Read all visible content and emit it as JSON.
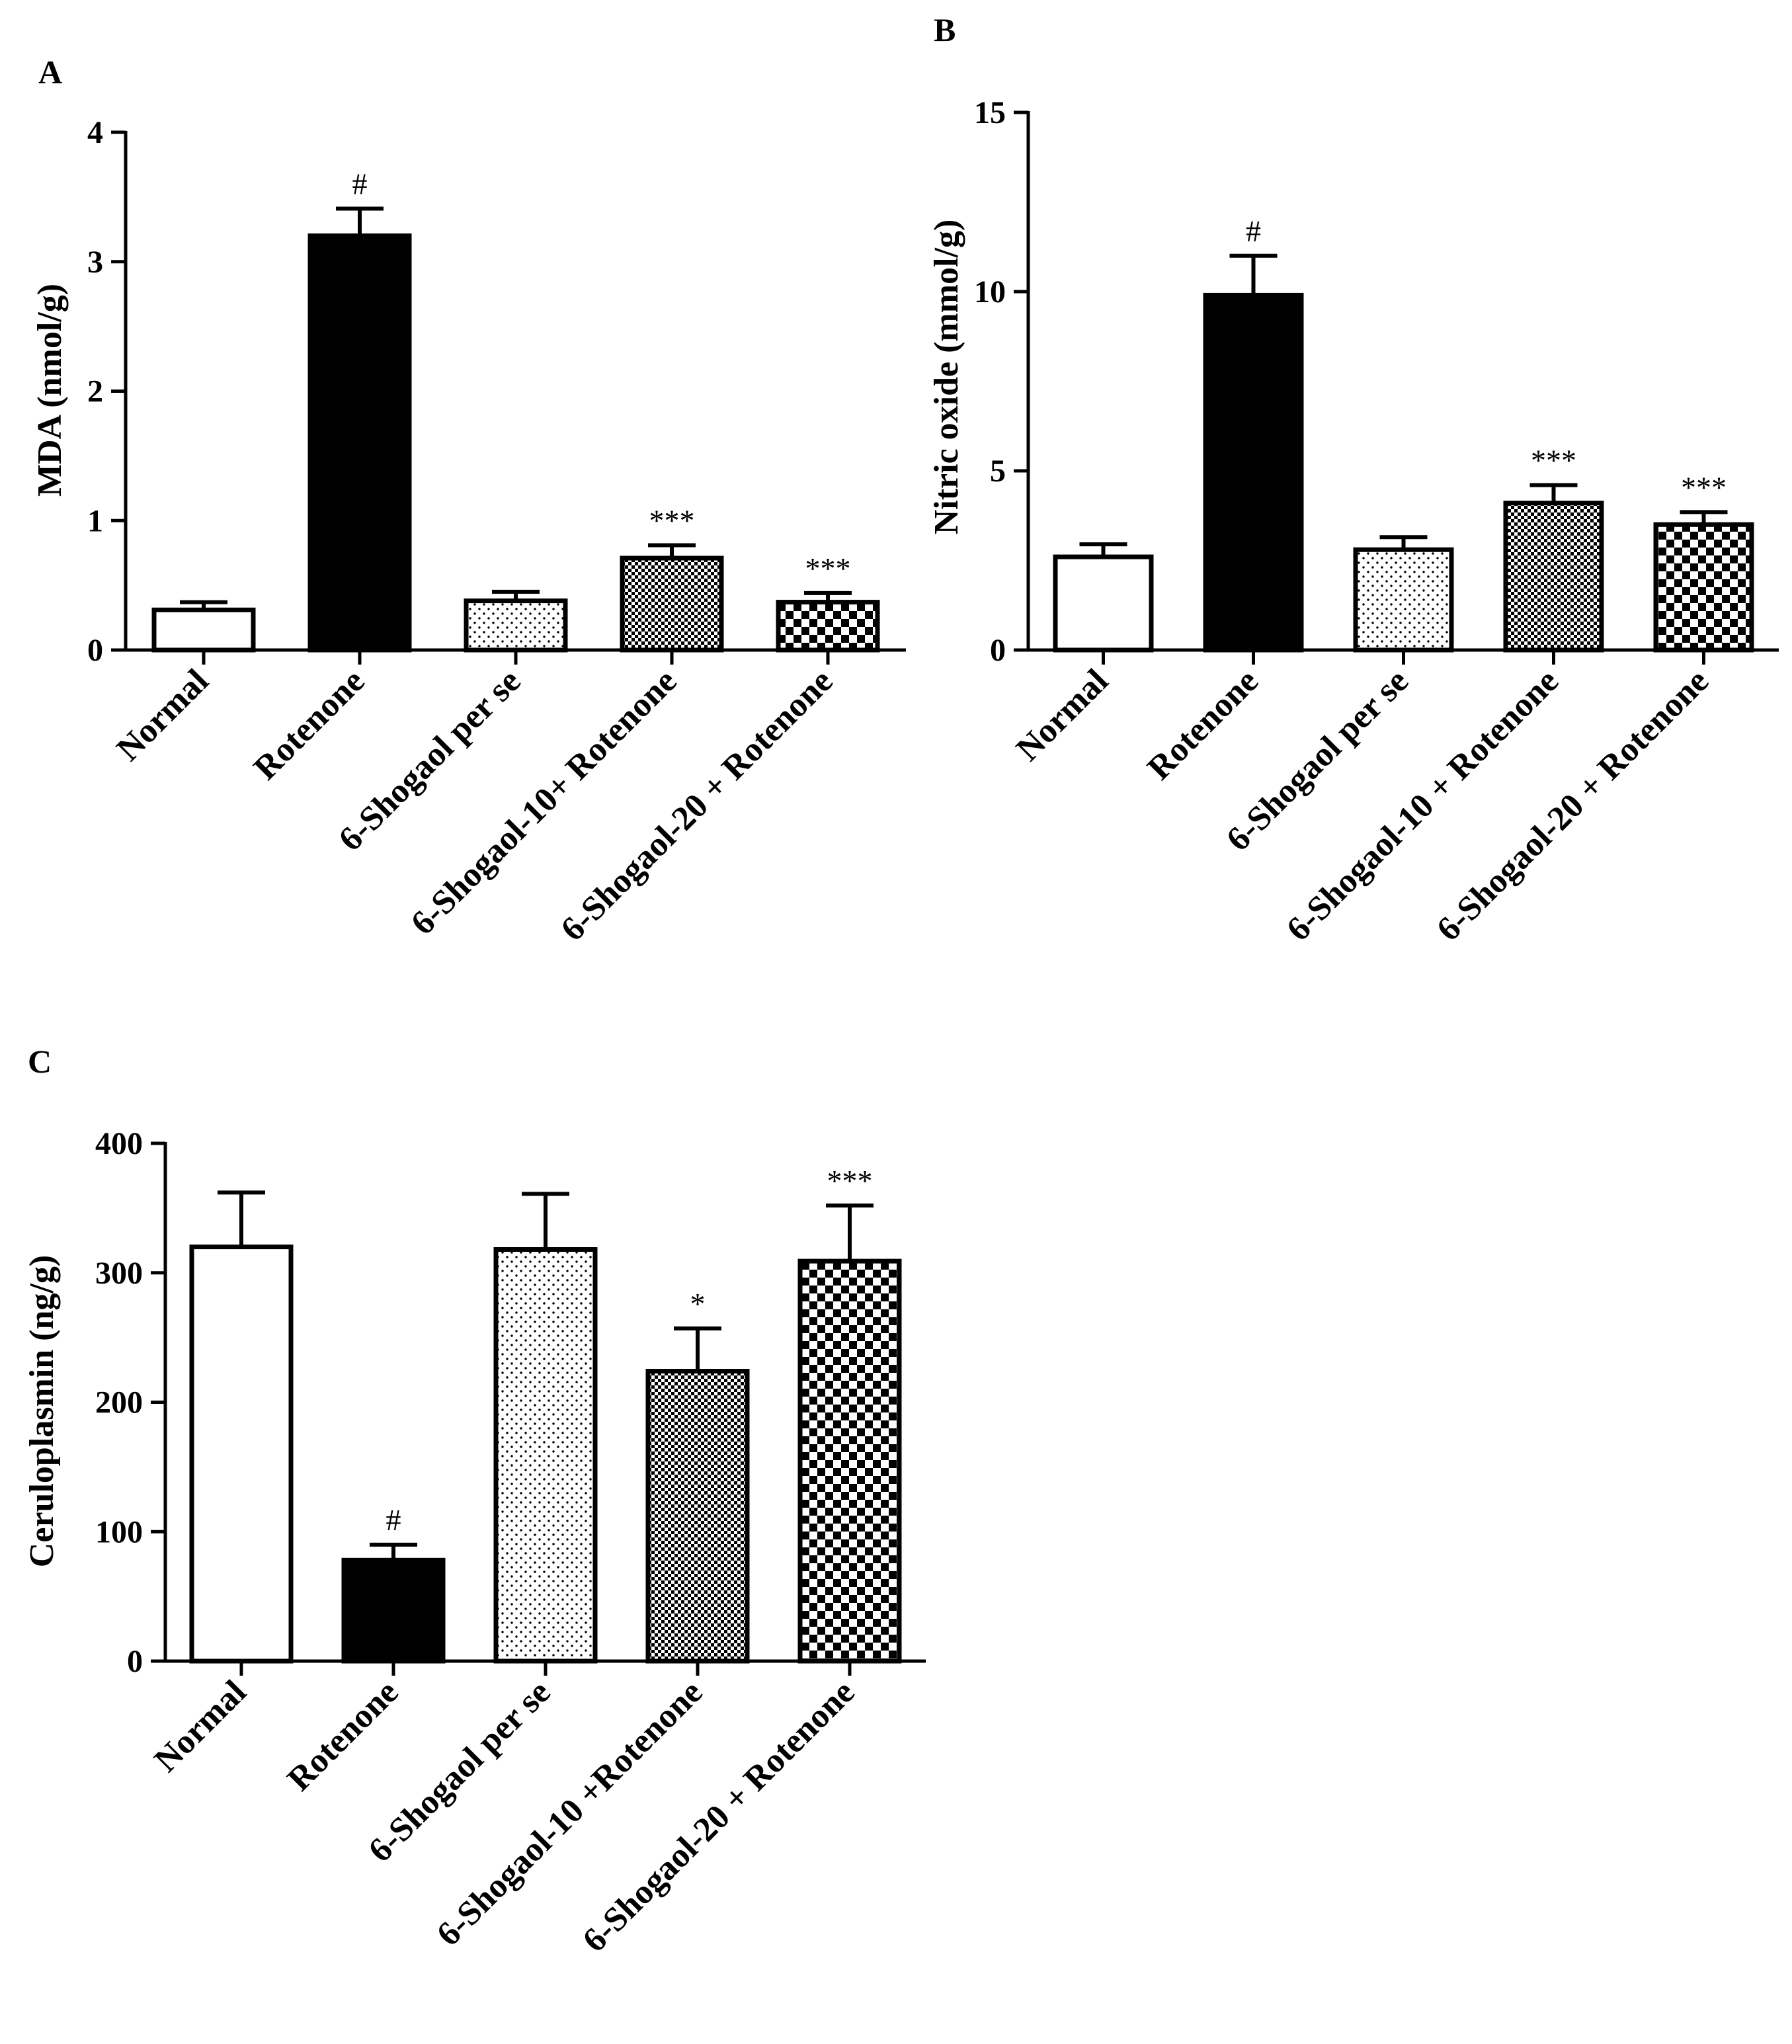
{
  "figure": {
    "colors": {
      "ink": "#000000",
      "background": "#ffffff"
    }
  },
  "chart_data": [
    {
      "panel": "A",
      "type": "bar",
      "ylabel": "MDA (nmol/g)",
      "xlabel": "",
      "ylim": [
        0,
        4
      ],
      "yticks": [
        "0",
        "1",
        "2",
        "3",
        "4"
      ],
      "categories": [
        "Normal",
        "Rotenone",
        "6-Shogaol per se",
        "6-Shogaol-10+ Rotenone",
        "6-Shogaol-20 + Rotenone"
      ],
      "values": [
        0.31,
        3.2,
        0.38,
        0.71,
        0.37
      ],
      "errors": [
        0.06,
        0.21,
        0.07,
        0.1,
        0.07
      ],
      "fills": [
        "white",
        "black",
        "dots",
        "fine-check",
        "coarse-check"
      ],
      "annotations": [
        "",
        "#",
        "",
        "***",
        "***"
      ]
    },
    {
      "panel": "B",
      "type": "bar",
      "ylabel": "Nitric oxide (mmol/g)",
      "xlabel": "",
      "ylim": [
        0,
        15
      ],
      "yticks": [
        "0",
        "5",
        "10",
        "15"
      ],
      "categories": [
        "Normal",
        "Rotenone",
        "6-Shogaol per se",
        "6-Shogaol-10 + Rotenone",
        "6-Shogaol-20 + Rotenone"
      ],
      "values": [
        2.6,
        9.9,
        2.8,
        4.1,
        3.5
      ],
      "errors": [
        0.35,
        1.1,
        0.35,
        0.5,
        0.35
      ],
      "fills": [
        "white",
        "black",
        "dots",
        "fine-check",
        "coarse-check"
      ],
      "annotations": [
        "",
        "#",
        "",
        "***",
        "***"
      ]
    },
    {
      "panel": "C",
      "type": "bar",
      "ylabel": "Ceruloplasmin (ng/g)",
      "xlabel": "",
      "ylim": [
        0,
        400
      ],
      "yticks": [
        "0",
        "100",
        "200",
        "300",
        "400"
      ],
      "categories": [
        "Normal",
        "Rotenone",
        "6-Shogaol per se",
        "6-Shogaol-10 +Rotenone",
        "6-Shogaol-20 + Rotenone"
      ],
      "values": [
        320,
        78,
        318,
        224,
        309
      ],
      "errors": [
        42,
        12,
        43,
        33,
        43
      ],
      "fills": [
        "white",
        "black",
        "dots",
        "fine-check",
        "coarse-check"
      ],
      "annotations": [
        "",
        "#",
        "",
        "*",
        "***"
      ]
    }
  ]
}
